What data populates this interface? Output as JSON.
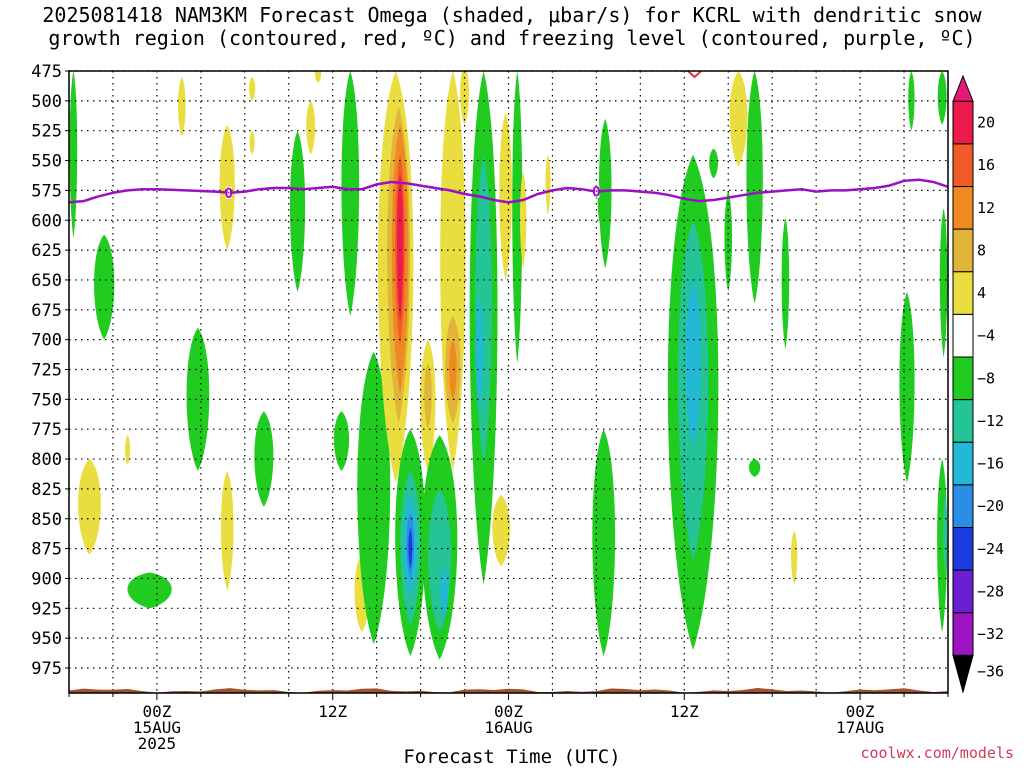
{
  "title_line1": "2025081418 NAM3KM Forecast Omega (shaded, μbar/s) for KCRL with dendritic snow",
  "title_line2": "growth region (contoured, red, ºC) and freezing level (contoured, purple, ºC)",
  "credit": "coolwx.com/models",
  "colors": {
    "freezing_line": "#9b0fc6",
    "dendritic": "#e8303a",
    "ground": "#a0522d"
  },
  "chart_data": {
    "type": "heatmap",
    "title": "2025081418 NAM3KM Forecast Omega (shaded, μbar/s) for KCRL with dendritic snow growth region (contoured, red, ºC) and freezing level (contoured, purple, ºC)",
    "xlabel": "Forecast Time (UTC)",
    "ylabel": "",
    "y_ticks": [
      "475",
      "500",
      "525",
      "550",
      "575",
      "600",
      "625",
      "650",
      "675",
      "700",
      "725",
      "750",
      "775",
      "800",
      "825",
      "850",
      "875",
      "900",
      "925",
      "950",
      "975"
    ],
    "x_ticks": [
      {
        "hour": 6,
        "line1": "00Z",
        "line2": "15AUG",
        "line3": "2025"
      },
      {
        "hour": 18,
        "line1": "12Z",
        "line2": "",
        "line3": ""
      },
      {
        "hour": 30,
        "line1": "00Z",
        "line2": "16AUG",
        "line3": ""
      },
      {
        "hour": 42,
        "line1": "12Z",
        "line2": "",
        "line3": ""
      },
      {
        "hour": 54,
        "line1": "00Z",
        "line2": "17AUG",
        "line3": ""
      }
    ],
    "xlim_hours": [
      0,
      60
    ],
    "ylim_hpa": [
      975,
      475
    ],
    "y_scale": "pressure (inverted)",
    "grid": true,
    "colorbar": {
      "labels": [
        "20",
        "16",
        "12",
        "8",
        "4",
        "−4",
        "−8",
        "−12",
        "−16",
        "−20",
        "−24",
        "−28",
        "−32",
        "−36"
      ],
      "colors": [
        "#ec1a4d",
        "#f25a2a",
        "#ee8a1f",
        "#e3b43a",
        "#e9dd40",
        "#ffffff",
        "#1fcc1f",
        "#24c497",
        "#23b8d6",
        "#2a8fe4",
        "#1c3ce0",
        "#6c1fd0",
        "#9d14c2",
        "#a8a8a8"
      ]
    },
    "freezing_level": {
      "label": "0",
      "points": [
        [
          0,
          585
        ],
        [
          1,
          584
        ],
        [
          2,
          580
        ],
        [
          3,
          577
        ],
        [
          4,
          575
        ],
        [
          5,
          574
        ],
        [
          6,
          574
        ],
        [
          8,
          575
        ],
        [
          10,
          576
        ],
        [
          11,
          577
        ],
        [
          12,
          576
        ],
        [
          13,
          574
        ],
        [
          14,
          573
        ],
        [
          15,
          573
        ],
        [
          16,
          574
        ],
        [
          17,
          573
        ],
        [
          18,
          572
        ],
        [
          19,
          574
        ],
        [
          20,
          574
        ],
        [
          21,
          570
        ],
        [
          22,
          568
        ],
        [
          23,
          569
        ],
        [
          24,
          571
        ],
        [
          25,
          573
        ],
        [
          26,
          575
        ],
        [
          27,
          578
        ],
        [
          28,
          580
        ],
        [
          29,
          583
        ],
        [
          30,
          585
        ],
        [
          31,
          583
        ],
        [
          32,
          578
        ],
        [
          33,
          575
        ],
        [
          34,
          573
        ],
        [
          35,
          574
        ],
        [
          36,
          576
        ],
        [
          37,
          575
        ],
        [
          38,
          575
        ],
        [
          39,
          576
        ],
        [
          40,
          577
        ],
        [
          41,
          579
        ],
        [
          42,
          582
        ],
        [
          43,
          584
        ],
        [
          44,
          583
        ],
        [
          45,
          581
        ],
        [
          46,
          579
        ],
        [
          47,
          577
        ],
        [
          48,
          576
        ],
        [
          49,
          575
        ],
        [
          50,
          574
        ],
        [
          51,
          576
        ],
        [
          52,
          575
        ],
        [
          53,
          575
        ],
        [
          54,
          574
        ],
        [
          55,
          573
        ],
        [
          56,
          571
        ],
        [
          57,
          567
        ],
        [
          58,
          566
        ],
        [
          59,
          568
        ],
        [
          60,
          572
        ]
      ]
    },
    "omega_regions": [
      {
        "hour": 0.3,
        "p_top": 475,
        "p_bot": 615,
        "width": 0.6,
        "level": "-8"
      },
      {
        "hour": 2.4,
        "p_top": 612,
        "p_bot": 700,
        "width": 1.6,
        "level": "-8"
      },
      {
        "hour": 1.4,
        "p_top": 800,
        "p_bot": 880,
        "width": 1.8,
        "level": "4"
      },
      {
        "hour": 4.0,
        "p_top": 780,
        "p_bot": 805,
        "width": 0.4,
        "level": "4"
      },
      {
        "hour": 5.5,
        "p_top": 895,
        "p_bot": 925,
        "width": 3.5,
        "level": "-8"
      },
      {
        "hour": 7.7,
        "p_top": 480,
        "p_bot": 530,
        "width": 0.6,
        "level": "4"
      },
      {
        "hour": 8.8,
        "p_top": 690,
        "p_bot": 810,
        "width": 1.8,
        "level": "-8"
      },
      {
        "hour": 10.8,
        "p_top": 520,
        "p_bot": 625,
        "width": 1.2,
        "level": "4"
      },
      {
        "hour": 10.8,
        "p_top": 810,
        "p_bot": 910,
        "width": 1.0,
        "level": "4"
      },
      {
        "hour": 12.5,
        "p_top": 480,
        "p_bot": 500,
        "width": 0.5,
        "level": "4"
      },
      {
        "hour": 12.5,
        "p_top": 525,
        "p_bot": 545,
        "width": 0.4,
        "level": "4"
      },
      {
        "hour": 13.3,
        "p_top": 760,
        "p_bot": 840,
        "width": 1.5,
        "level": "-8"
      },
      {
        "hour": 15.6,
        "p_top": 525,
        "p_bot": 660,
        "width": 1.2,
        "level": "-8"
      },
      {
        "hour": 16.5,
        "p_top": 500,
        "p_bot": 545,
        "width": 0.7,
        "level": "4"
      },
      {
        "hour": 17.0,
        "p_top": 470,
        "p_bot": 485,
        "width": 0.5,
        "level": "4"
      },
      {
        "hour": 18.6,
        "p_top": 760,
        "p_bot": 810,
        "width": 1.2,
        "level": "-8"
      },
      {
        "hour": 19.2,
        "p_top": 475,
        "p_bot": 680,
        "width": 1.4,
        "level": "-8"
      },
      {
        "hour": 20.0,
        "p_top": 880,
        "p_bot": 945,
        "width": 1.2,
        "level": "4"
      },
      {
        "hour": 20.8,
        "p_top": 710,
        "p_bot": 955,
        "width": 2.6,
        "level": "-8"
      },
      {
        "hour": 22.3,
        "p_top": 475,
        "p_bot": 820,
        "width": 2.8,
        "level": "4"
      },
      {
        "hour": 22.5,
        "p_top": 505,
        "p_bot": 770,
        "width": 1.8,
        "level": "8"
      },
      {
        "hour": 22.6,
        "p_top": 520,
        "p_bot": 745,
        "width": 1.3,
        "level": "12"
      },
      {
        "hour": 22.6,
        "p_top": 545,
        "p_bot": 705,
        "width": 0.8,
        "level": "16"
      },
      {
        "hour": 22.6,
        "p_top": 560,
        "p_bot": 685,
        "width": 0.5,
        "level": "20"
      },
      {
        "hour": 23.3,
        "p_top": 775,
        "p_bot": 965,
        "width": 2.4,
        "level": "-8"
      },
      {
        "hour": 23.3,
        "p_top": 810,
        "p_bot": 940,
        "width": 1.6,
        "level": "-12"
      },
      {
        "hour": 23.3,
        "p_top": 830,
        "p_bot": 915,
        "width": 1.0,
        "level": "-16"
      },
      {
        "hour": 23.3,
        "p_top": 845,
        "p_bot": 900,
        "width": 0.6,
        "level": "-20"
      },
      {
        "hour": 23.3,
        "p_top": 858,
        "p_bot": 892,
        "width": 0.3,
        "level": "-24"
      },
      {
        "hour": 24.5,
        "p_top": 700,
        "p_bot": 810,
        "width": 1.2,
        "level": "4"
      },
      {
        "hour": 24.5,
        "p_top": 720,
        "p_bot": 775,
        "width": 0.6,
        "level": "8"
      },
      {
        "hour": 25.3,
        "p_top": 780,
        "p_bot": 968,
        "width": 2.8,
        "level": "-8"
      },
      {
        "hour": 25.3,
        "p_top": 825,
        "p_bot": 945,
        "width": 1.8,
        "level": "-12"
      },
      {
        "hour": 25.6,
        "p_top": 890,
        "p_bot": 935,
        "width": 0.6,
        "level": "-16"
      },
      {
        "hour": 26.2,
        "p_top": 475,
        "p_bot": 810,
        "width": 2.0,
        "level": "4"
      },
      {
        "hour": 26.2,
        "p_top": 680,
        "p_bot": 770,
        "width": 1.2,
        "level": "8"
      },
      {
        "hour": 26.2,
        "p_top": 700,
        "p_bot": 750,
        "width": 0.6,
        "level": "12"
      },
      {
        "hour": 27.0,
        "p_top": 470,
        "p_bot": 520,
        "width": 0.7,
        "level": "4"
      },
      {
        "hour": 28.3,
        "p_top": 475,
        "p_bot": 905,
        "width": 2.2,
        "level": "-8"
      },
      {
        "hour": 28.3,
        "p_top": 545,
        "p_bot": 805,
        "width": 1.3,
        "level": "-12"
      },
      {
        "hour": 28.0,
        "p_top": 665,
        "p_bot": 760,
        "width": 0.6,
        "level": "-16"
      },
      {
        "hour": 29.8,
        "p_top": 510,
        "p_bot": 650,
        "width": 1.0,
        "level": "4"
      },
      {
        "hour": 29.5,
        "p_top": 830,
        "p_bot": 890,
        "width": 1.4,
        "level": "4"
      },
      {
        "hour": 30.6,
        "p_top": 475,
        "p_bot": 720,
        "width": 0.8,
        "level": "-8"
      },
      {
        "hour": 31.0,
        "p_top": 560,
        "p_bot": 640,
        "width": 0.5,
        "level": "4"
      },
      {
        "hour": 32.7,
        "p_top": 545,
        "p_bot": 595,
        "width": 0.4,
        "level": "4"
      },
      {
        "hour": 36.3,
        "p_top": 565,
        "p_bot": 605,
        "width": 0.5,
        "level": "-8"
      },
      {
        "hour": 36.6,
        "p_top": 515,
        "p_bot": 640,
        "width": 1.0,
        "level": "-8"
      },
      {
        "hour": 36.5,
        "p_top": 775,
        "p_bot": 965,
        "width": 1.8,
        "level": "-8"
      },
      {
        "hour": 42.6,
        "p_top": 545,
        "p_bot": 960,
        "width": 4.0,
        "level": "-8"
      },
      {
        "hour": 42.6,
        "p_top": 600,
        "p_bot": 885,
        "width": 2.4,
        "level": "-12"
      },
      {
        "hour": 42.6,
        "p_top": 650,
        "p_bot": 790,
        "width": 1.2,
        "level": "-16"
      },
      {
        "hour": 44.0,
        "p_top": 540,
        "p_bot": 565,
        "width": 0.7,
        "level": "-8"
      },
      {
        "hour": 45.0,
        "p_top": 575,
        "p_bot": 660,
        "width": 0.6,
        "level": "-8"
      },
      {
        "hour": 45.7,
        "p_top": 475,
        "p_bot": 555,
        "width": 1.4,
        "level": "4"
      },
      {
        "hour": 46.8,
        "p_top": 475,
        "p_bot": 670,
        "width": 1.3,
        "level": "-8"
      },
      {
        "hour": 46.8,
        "p_top": 800,
        "p_bot": 815,
        "width": 0.9,
        "level": "-8"
      },
      {
        "hour": 48.9,
        "p_top": 598,
        "p_bot": 708,
        "width": 0.6,
        "level": "-8"
      },
      {
        "hour": 49.5,
        "p_top": 860,
        "p_bot": 905,
        "width": 0.5,
        "level": "4"
      },
      {
        "hour": 57.5,
        "p_top": 475,
        "p_bot": 525,
        "width": 0.5,
        "level": "-8"
      },
      {
        "hour": 57.2,
        "p_top": 660,
        "p_bot": 820,
        "width": 1.2,
        "level": "-8"
      },
      {
        "hour": 59.6,
        "p_top": 475,
        "p_bot": 520,
        "width": 0.7,
        "level": "-8"
      },
      {
        "hour": 59.7,
        "p_top": 590,
        "p_bot": 715,
        "width": 0.6,
        "level": "-8"
      },
      {
        "hour": 59.6,
        "p_top": 800,
        "p_bot": 945,
        "width": 0.8,
        "level": "-8"
      },
      {
        "hour": 59.8,
        "p_top": 830,
        "p_bot": 895,
        "width": 0.3,
        "level": "-12"
      }
    ],
    "dendritic_contours": [
      {
        "hour": 42.7,
        "p_top": 468,
        "p_bot": 480
      }
    ]
  }
}
